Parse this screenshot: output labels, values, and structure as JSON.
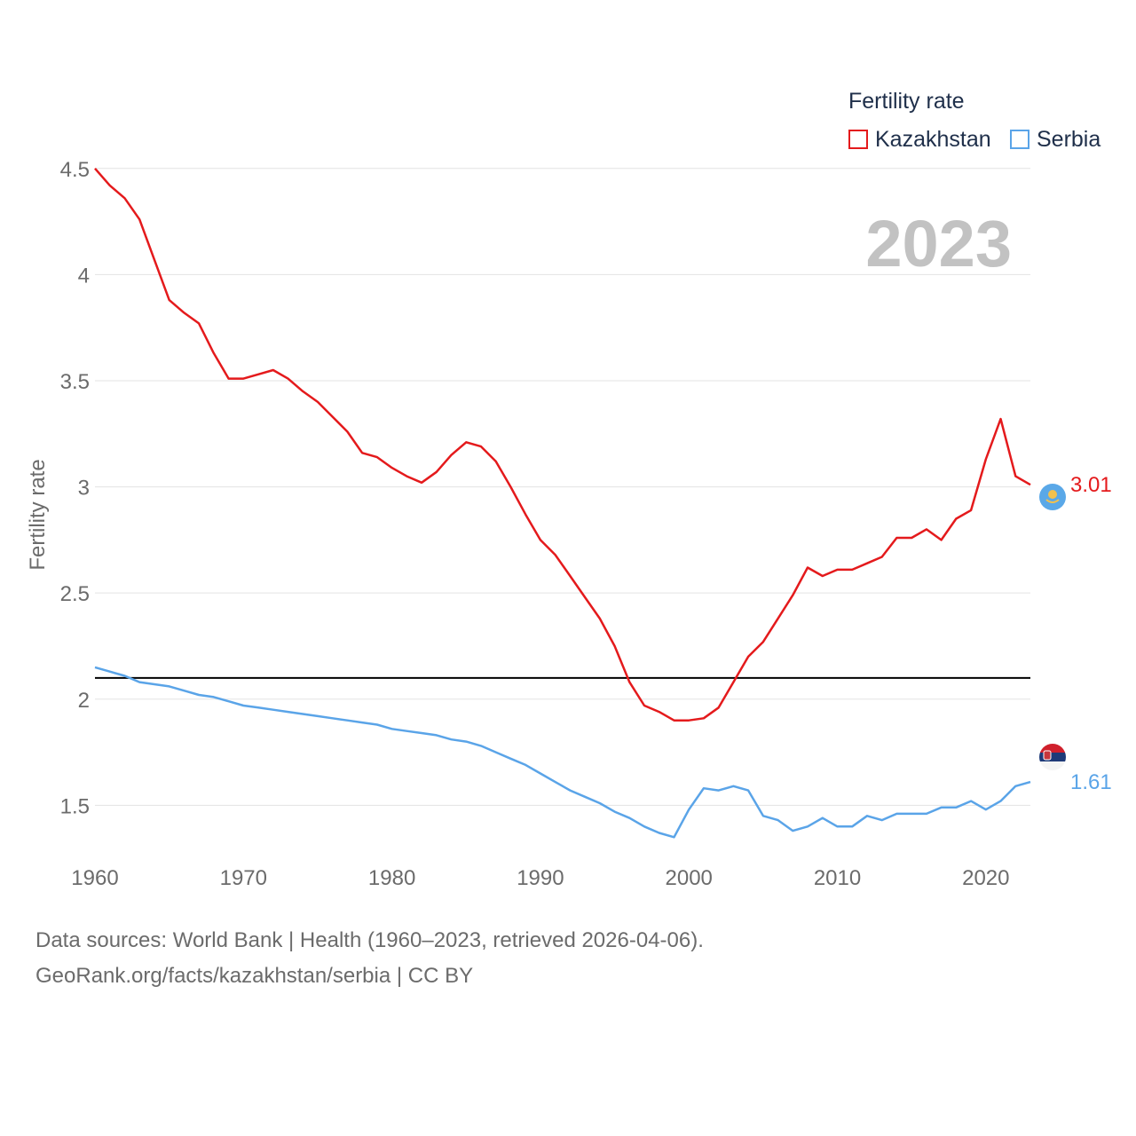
{
  "legend": {
    "title": "Fertility rate",
    "items": [
      {
        "label": "Kazakhstan",
        "color": "#e41a1c"
      },
      {
        "label": "Serbia",
        "color": "#5aa4e8"
      }
    ]
  },
  "year_label": "2023",
  "footer": {
    "line1": "Data sources: World Bank | Health (1960–2023, retrieved 2026-04-06).",
    "line2": "GeoRank.org/facts/kazakhstan/serbia | CC BY"
  },
  "chart_data": {
    "type": "line",
    "title": "",
    "xlabel": "",
    "ylabel": "Fertility rate",
    "xlim": [
      1960,
      2023
    ],
    "ylim": [
      1.28,
      4.52
    ],
    "x_ticks": [
      1960,
      1970,
      1980,
      1990,
      2000,
      2010,
      2020
    ],
    "y_ticks": [
      1.5,
      2,
      2.5,
      3,
      3.5,
      4,
      4.5
    ],
    "y_tick_labels": [
      "1.5",
      "2",
      "2.5",
      "3",
      "3.5",
      "4",
      "4.5"
    ],
    "reference_line": 2.1,
    "x": [
      1960,
      1961,
      1962,
      1963,
      1964,
      1965,
      1966,
      1967,
      1968,
      1969,
      1970,
      1971,
      1972,
      1973,
      1974,
      1975,
      1976,
      1977,
      1978,
      1979,
      1980,
      1981,
      1982,
      1983,
      1984,
      1985,
      1986,
      1987,
      1988,
      1989,
      1990,
      1991,
      1992,
      1993,
      1994,
      1995,
      1996,
      1997,
      1998,
      1999,
      2000,
      2001,
      2002,
      2003,
      2004,
      2005,
      2006,
      2007,
      2008,
      2009,
      2010,
      2011,
      2012,
      2013,
      2014,
      2015,
      2016,
      2017,
      2018,
      2019,
      2020,
      2021,
      2022,
      2023
    ],
    "series": [
      {
        "name": "Kazakhstan",
        "color": "#e41a1c",
        "end_label": "3.01",
        "values": [
          4.5,
          4.42,
          4.36,
          4.26,
          4.07,
          3.88,
          3.82,
          3.77,
          3.63,
          3.51,
          3.51,
          3.53,
          3.55,
          3.51,
          3.45,
          3.4,
          3.33,
          3.26,
          3.16,
          3.14,
          3.09,
          3.05,
          3.02,
          3.07,
          3.15,
          3.21,
          3.19,
          3.12,
          3.0,
          2.87,
          2.75,
          2.68,
          2.58,
          2.48,
          2.38,
          2.25,
          2.08,
          1.97,
          1.94,
          1.9,
          1.9,
          1.91,
          1.96,
          2.08,
          2.2,
          2.27,
          2.38,
          2.49,
          2.62,
          2.58,
          2.61,
          2.61,
          2.64,
          2.67,
          2.76,
          2.76,
          2.8,
          2.75,
          2.85,
          2.89,
          3.13,
          3.32,
          3.05,
          3.01
        ]
      },
      {
        "name": "Serbia",
        "color": "#5aa4e8",
        "end_label": "1.61",
        "values": [
          2.15,
          2.13,
          2.11,
          2.08,
          2.07,
          2.06,
          2.04,
          2.02,
          2.01,
          1.99,
          1.97,
          1.96,
          1.95,
          1.94,
          1.93,
          1.92,
          1.91,
          1.9,
          1.89,
          1.88,
          1.86,
          1.85,
          1.84,
          1.83,
          1.81,
          1.8,
          1.78,
          1.75,
          1.72,
          1.69,
          1.65,
          1.61,
          1.57,
          1.54,
          1.51,
          1.47,
          1.44,
          1.4,
          1.37,
          1.35,
          1.48,
          1.58,
          1.57,
          1.59,
          1.57,
          1.45,
          1.43,
          1.38,
          1.4,
          1.44,
          1.4,
          1.4,
          1.45,
          1.43,
          1.46,
          1.46,
          1.46,
          1.49,
          1.49,
          1.52,
          1.48,
          1.52,
          1.59,
          1.61
        ]
      }
    ]
  }
}
